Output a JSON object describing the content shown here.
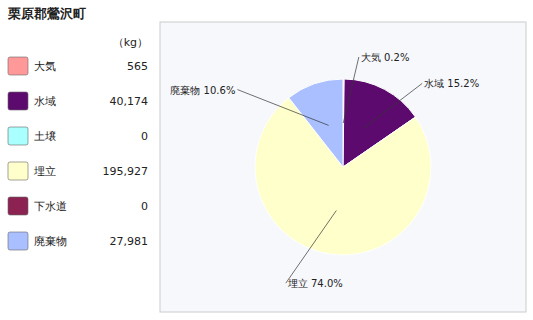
{
  "chart_data": {
    "type": "pie",
    "title": "栗原郡鶯沢町",
    "legend_header": "（kg）",
    "categories": [
      "大気",
      "水域",
      "土壌",
      "埋立",
      "下水道",
      "廃棄物"
    ],
    "values": [
      565,
      40174,
      0,
      195927,
      0,
      27981
    ],
    "value_labels": [
      "565",
      "40,174",
      "0",
      "195,927",
      "0",
      "27,981"
    ],
    "colors": [
      "#FF9999",
      "#5C0A6E",
      "#AAFFFF",
      "#FFFFCC",
      "#8B2252",
      "#AABFFF"
    ],
    "shares": [
      0.2,
      15.2,
      null,
      74.0,
      null,
      10.6
    ],
    "share_labels": [
      "大気 0.2%",
      "水域 15.2%",
      null,
      "埋立 74.0%",
      null,
      "廃棄物 10.6%"
    ],
    "legend": "left"
  }
}
